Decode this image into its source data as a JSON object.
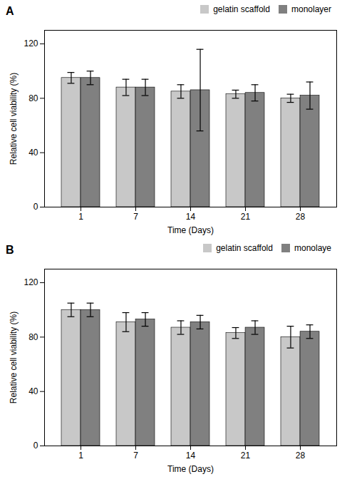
{
  "chart_data": [
    {
      "type": "bar",
      "title": "A",
      "xlabel": "Time (Days)",
      "ylabel": "Relative cell viability (%)",
      "categories": [
        "1",
        "7",
        "14",
        "21",
        "28"
      ],
      "series": [
        {
          "name": "gelatin scaffold",
          "color": "#c8c8c8",
          "values": [
            95,
            88,
            85,
            83,
            80
          ],
          "errors": [
            4,
            6,
            5,
            3,
            3
          ]
        },
        {
          "name": "monolayer",
          "color": "#808080",
          "values": [
            95,
            88,
            86,
            84,
            82
          ],
          "errors": [
            5,
            6,
            30,
            6,
            10
          ]
        }
      ],
      "ylim": [
        0,
        130
      ],
      "yticks": [
        0,
        40,
        80,
        120
      ],
      "legend": "upper right",
      "grid": false
    },
    {
      "type": "bar",
      "title": "B",
      "xlabel": "Time (Days)",
      "ylabel": "Relative cell viability (%)",
      "categories": [
        "1",
        "7",
        "14",
        "21",
        "28"
      ],
      "series": [
        {
          "name": "gelatin scaffold",
          "color": "#c8c8c8",
          "values": [
            100,
            91,
            87,
            83,
            80
          ],
          "errors": [
            5,
            7,
            5,
            4,
            8
          ]
        },
        {
          "name": "monolaye",
          "color": "#808080",
          "values": [
            100,
            93,
            91,
            87,
            84
          ],
          "errors": [
            5,
            5,
            5,
            5,
            5
          ]
        }
      ],
      "ylim": [
        0,
        130
      ],
      "yticks": [
        0,
        40,
        80,
        120
      ],
      "legend": "upper right",
      "grid": false
    }
  ]
}
